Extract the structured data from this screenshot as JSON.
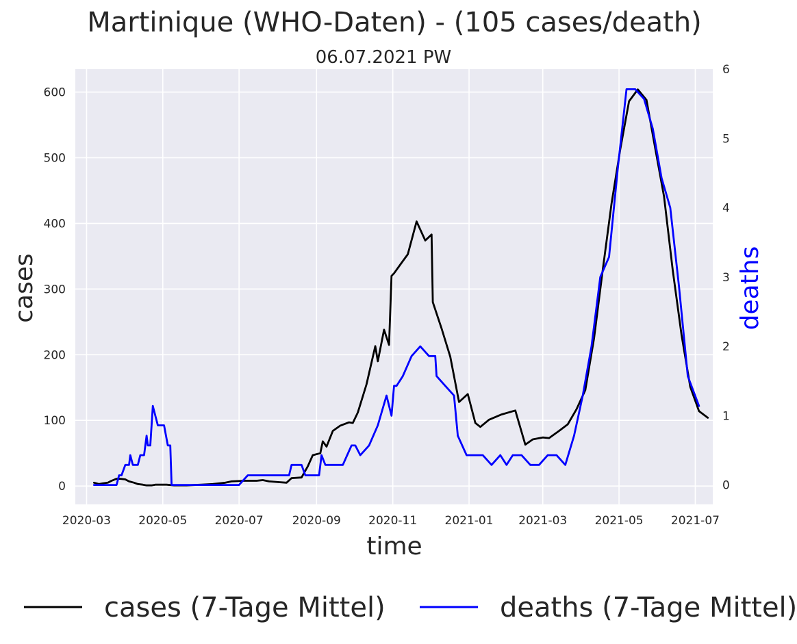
{
  "chart_data": {
    "type": "line",
    "title": "Martinique (WHO-Daten) - (105 cases/death)",
    "subtitle": "06.07.2021 PW",
    "xlabel": "time",
    "ylabel": "cases",
    "ylabel_right": "deaths",
    "ylim": [
      -28,
      635
    ],
    "ylim_right": [
      -0.28,
      6.0
    ],
    "yticks": [
      0,
      100,
      200,
      300,
      400,
      500,
      600
    ],
    "yticks_right": [
      0,
      1,
      2,
      3,
      4,
      5,
      6
    ],
    "xlim": [
      "2020-02-21",
      "2021-07-15"
    ],
    "xticks": [
      "2020-03",
      "2020-05",
      "2020-07",
      "2020-09",
      "2020-11",
      "2021-01",
      "2021-03",
      "2021-05",
      "2021-07"
    ],
    "grid": true,
    "legend_position": "bottom",
    "colors": {
      "cases": "#000000",
      "deaths": "#0000ff",
      "plot_bg": "#eaeaf2",
      "grid": "#ffffff",
      "right_label": "#0000ff"
    },
    "series": [
      {
        "name": "cases (7-Tage Mittel)",
        "axis": "left",
        "color": "#000000",
        "points": [
          [
            "2020-03-07",
            5
          ],
          [
            "2020-03-11",
            3
          ],
          [
            "2020-03-14",
            4
          ],
          [
            "2020-03-18",
            5
          ],
          [
            "2020-03-21",
            8
          ],
          [
            "2020-03-25",
            11
          ],
          [
            "2020-03-28",
            11
          ],
          [
            "2020-04-01",
            10
          ],
          [
            "2020-04-04",
            7
          ],
          [
            "2020-04-08",
            5
          ],
          [
            "2020-04-11",
            3
          ],
          [
            "2020-04-15",
            2
          ],
          [
            "2020-04-18",
            1
          ],
          [
            "2020-04-22",
            1
          ],
          [
            "2020-04-25",
            2
          ],
          [
            "2020-04-29",
            2
          ],
          [
            "2020-05-04",
            2
          ],
          [
            "2020-05-10",
            1
          ],
          [
            "2020-05-20",
            1
          ],
          [
            "2020-06-01",
            2
          ],
          [
            "2020-06-10",
            3
          ],
          [
            "2020-06-20",
            5
          ],
          [
            "2020-06-25",
            7
          ],
          [
            "2020-07-05",
            8
          ],
          [
            "2020-07-15",
            8
          ],
          [
            "2020-07-20",
            9
          ],
          [
            "2020-07-25",
            7
          ],
          [
            "2020-08-01",
            6
          ],
          [
            "2020-08-08",
            5
          ],
          [
            "2020-08-12",
            12
          ],
          [
            "2020-08-20",
            13
          ],
          [
            "2020-08-25",
            30
          ],
          [
            "2020-08-29",
            47
          ],
          [
            "2020-09-04",
            50
          ],
          [
            "2020-09-06",
            68
          ],
          [
            "2020-09-09",
            60
          ],
          [
            "2020-09-14",
            84
          ],
          [
            "2020-09-20",
            92
          ],
          [
            "2020-09-27",
            97
          ],
          [
            "2020-09-30",
            96
          ],
          [
            "2020-10-04",
            112
          ],
          [
            "2020-10-11",
            155
          ],
          [
            "2020-10-18",
            213
          ],
          [
            "2020-10-20",
            190
          ],
          [
            "2020-10-25",
            238
          ],
          [
            "2020-10-29",
            215
          ],
          [
            "2020-10-31",
            320
          ],
          [
            "2020-11-02",
            324
          ],
          [
            "2020-11-08",
            340
          ],
          [
            "2020-11-13",
            353
          ],
          [
            "2020-11-20",
            403
          ],
          [
            "2020-11-27",
            374
          ],
          [
            "2020-12-02",
            383
          ],
          [
            "2020-12-03",
            280
          ],
          [
            "2020-12-10",
            240
          ],
          [
            "2020-12-17",
            197
          ],
          [
            "2020-12-24",
            128
          ],
          [
            "2020-12-31",
            140
          ],
          [
            "2021-01-06",
            96
          ],
          [
            "2021-01-10",
            90
          ],
          [
            "2021-01-17",
            101
          ],
          [
            "2021-01-27",
            109
          ],
          [
            "2021-02-07",
            115
          ],
          [
            "2021-02-15",
            63
          ],
          [
            "2021-02-21",
            71
          ],
          [
            "2021-03-01",
            74
          ],
          [
            "2021-03-06",
            73
          ],
          [
            "2021-03-14",
            84
          ],
          [
            "2021-03-21",
            94
          ],
          [
            "2021-03-28",
            117
          ],
          [
            "2021-04-04",
            146
          ],
          [
            "2021-04-11",
            225
          ],
          [
            "2021-04-18",
            330
          ],
          [
            "2021-04-25",
            430
          ],
          [
            "2021-05-02",
            513
          ],
          [
            "2021-05-09",
            586
          ],
          [
            "2021-05-16",
            604
          ],
          [
            "2021-05-23",
            588
          ],
          [
            "2021-05-30",
            514
          ],
          [
            "2021-06-06",
            441
          ],
          [
            "2021-06-13",
            328
          ],
          [
            "2021-06-20",
            230
          ],
          [
            "2021-06-27",
            151
          ],
          [
            "2021-07-04",
            114
          ],
          [
            "2021-07-11",
            104
          ]
        ]
      },
      {
        "name": "deaths (7-Tage Mittel)",
        "axis": "right",
        "color": "#0000ff",
        "points": [
          [
            "2020-03-07",
            0
          ],
          [
            "2020-03-25",
            0
          ],
          [
            "2020-03-27",
            0.14
          ],
          [
            "2020-03-29",
            0.14
          ],
          [
            "2020-04-01",
            0.29
          ],
          [
            "2020-04-04",
            0.29
          ],
          [
            "2020-04-05",
            0.43
          ],
          [
            "2020-04-07",
            0.29
          ],
          [
            "2020-04-11",
            0.29
          ],
          [
            "2020-04-13",
            0.43
          ],
          [
            "2020-04-16",
            0.43
          ],
          [
            "2020-04-18",
            0.71
          ],
          [
            "2020-04-19",
            0.57
          ],
          [
            "2020-04-21",
            0.57
          ],
          [
            "2020-04-23",
            1.14
          ],
          [
            "2020-04-27",
            0.86
          ],
          [
            "2020-05-02",
            0.86
          ],
          [
            "2020-05-05",
            0.57
          ],
          [
            "2020-05-07",
            0.57
          ],
          [
            "2020-05-08",
            0.0
          ],
          [
            "2020-05-14",
            0
          ],
          [
            "2020-07-01",
            0
          ],
          [
            "2020-07-08",
            0.14
          ],
          [
            "2020-08-10",
            0.14
          ],
          [
            "2020-08-12",
            0.29
          ],
          [
            "2020-08-20",
            0.29
          ],
          [
            "2020-08-23",
            0.14
          ],
          [
            "2020-09-03",
            0.14
          ],
          [
            "2020-09-05",
            0.43
          ],
          [
            "2020-09-08",
            0.29
          ],
          [
            "2020-09-22",
            0.29
          ],
          [
            "2020-09-29",
            0.57
          ],
          [
            "2020-10-02",
            0.57
          ],
          [
            "2020-10-06",
            0.43
          ],
          [
            "2020-10-13",
            0.57
          ],
          [
            "2020-10-20",
            0.86
          ],
          [
            "2020-10-27",
            1.29
          ],
          [
            "2020-10-31",
            1.0
          ],
          [
            "2020-11-02",
            1.43
          ],
          [
            "2020-11-04",
            1.43
          ],
          [
            "2020-11-09",
            1.57
          ],
          [
            "2020-11-16",
            1.86
          ],
          [
            "2020-11-23",
            2.0
          ],
          [
            "2020-11-30",
            1.86
          ],
          [
            "2020-12-05",
            1.86
          ],
          [
            "2020-12-06",
            1.57
          ],
          [
            "2020-12-13",
            1.43
          ],
          [
            "2020-12-20",
            1.29
          ],
          [
            "2020-12-23",
            0.71
          ],
          [
            "2020-12-30",
            0.43
          ],
          [
            "2021-01-07",
            0.43
          ],
          [
            "2021-01-12",
            0.43
          ],
          [
            "2021-01-19",
            0.29
          ],
          [
            "2021-01-26",
            0.43
          ],
          [
            "2021-01-31",
            0.29
          ],
          [
            "2021-02-05",
            0.43
          ],
          [
            "2021-02-12",
            0.43
          ],
          [
            "2021-02-19",
            0.29
          ],
          [
            "2021-02-26",
            0.29
          ],
          [
            "2021-03-05",
            0.43
          ],
          [
            "2021-03-12",
            0.43
          ],
          [
            "2021-03-19",
            0.29
          ],
          [
            "2021-03-26",
            0.71
          ],
          [
            "2021-04-02",
            1.29
          ],
          [
            "2021-04-09",
            2.0
          ],
          [
            "2021-04-16",
            3.0
          ],
          [
            "2021-04-23",
            3.29
          ],
          [
            "2021-04-30",
            4.57
          ],
          [
            "2021-05-07",
            5.71
          ],
          [
            "2021-05-14",
            5.71
          ],
          [
            "2021-05-21",
            5.57
          ],
          [
            "2021-05-28",
            5.14
          ],
          [
            "2021-06-04",
            4.43
          ],
          [
            "2021-06-11",
            4.0
          ],
          [
            "2021-06-18",
            2.86
          ],
          [
            "2021-06-25",
            1.57
          ],
          [
            "2021-07-04",
            1.14
          ]
        ]
      }
    ]
  }
}
